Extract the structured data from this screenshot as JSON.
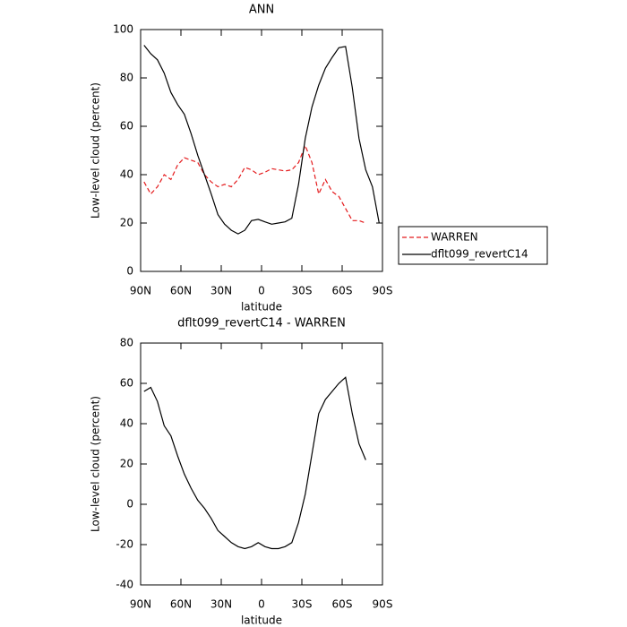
{
  "chart_data": [
    {
      "type": "line",
      "title": "ANN",
      "xlabel": "latitude",
      "ylabel": "Low-level cloud (percent)",
      "x": [
        87.5,
        82.5,
        77.5,
        72.5,
        67.5,
        62.5,
        57.5,
        52.5,
        47.5,
        42.5,
        37.5,
        32.5,
        27.5,
        22.5,
        17.5,
        12.5,
        7.5,
        2.5,
        -2.5,
        -7.5,
        -12.5,
        -17.5,
        -22.5,
        -27.5,
        -32.5,
        -37.5,
        -42.5,
        -47.5,
        -52.5,
        -57.5,
        -62.5,
        -67.5,
        -72.5,
        -77.5,
        -82.5,
        -87.5
      ],
      "series": [
        {
          "name": "WARREN",
          "color": "#e41a1c",
          "linestyle": "dashed",
          "values": [
            37,
            32,
            35,
            40,
            38,
            44,
            47,
            46,
            45,
            40,
            37,
            35,
            36,
            35,
            38,
            43,
            42,
            40,
            41,
            42.5,
            42,
            41.5,
            42,
            45,
            52,
            45,
            32,
            38,
            33,
            31,
            26,
            21,
            21,
            20,
            null,
            null
          ]
        },
        {
          "name": "dflt099_revertC14",
          "color": "#000000",
          "linestyle": "solid",
          "values": [
            93.5,
            90,
            87.5,
            82,
            74,
            69,
            65,
            57,
            48,
            40,
            32,
            23.5,
            19.5,
            17,
            15.5,
            17,
            21,
            21.5,
            20.5,
            19.5,
            20,
            20.5,
            22,
            36,
            55,
            68,
            77,
            84,
            88.5,
            92.5,
            93,
            76,
            55,
            42,
            35,
            20
          ]
        }
      ],
      "xlim": [
        90,
        -90
      ],
      "xticks": [
        {
          "value": 90,
          "label": "90N"
        },
        {
          "value": 60,
          "label": "60N"
        },
        {
          "value": 30,
          "label": "30N"
        },
        0,
        {
          "value": -30,
          "label": "30S"
        },
        {
          "value": -60,
          "label": "60S"
        },
        {
          "value": -90,
          "label": "90S"
        }
      ],
      "ylim": [
        0,
        100
      ],
      "yticks": [
        0,
        20,
        40,
        60,
        80,
        100
      ],
      "legend": "right"
    },
    {
      "type": "line",
      "title": "dflt099_revertC14 - WARREN",
      "xlabel": "latitude",
      "ylabel": "Low-level cloud (percent)",
      "x": [
        87.5,
        82.5,
        77.5,
        72.5,
        67.5,
        62.5,
        57.5,
        52.5,
        47.5,
        42.5,
        37.5,
        32.5,
        27.5,
        22.5,
        17.5,
        12.5,
        7.5,
        2.5,
        -2.5,
        -7.5,
        -12.5,
        -17.5,
        -22.5,
        -27.5,
        -32.5,
        -37.5,
        -42.5,
        -47.5,
        -52.5,
        -57.5,
        -62.5,
        -67.5,
        -72.5,
        -77.5,
        -82.5,
        -87.5
      ],
      "series": [
        {
          "color": "#000000",
          "linestyle": "solid",
          "values": [
            56,
            58,
            51,
            39,
            34,
            24,
            15,
            8,
            2,
            -2,
            -7,
            -13,
            -16,
            -19,
            -21,
            -22,
            -21,
            -19,
            -21,
            -22,
            -22,
            -21,
            -19,
            -9,
            5,
            25,
            45,
            52,
            56,
            60,
            63,
            45,
            30,
            22,
            null,
            null
          ]
        }
      ],
      "xlim": [
        90,
        -90
      ],
      "xticks": [
        {
          "value": 90,
          "label": "90N"
        },
        {
          "value": 60,
          "label": "60N"
        },
        {
          "value": 30,
          "label": "30N"
        },
        0,
        {
          "value": -30,
          "label": "30S"
        },
        {
          "value": -60,
          "label": "60S"
        },
        {
          "value": -90,
          "label": "90S"
        }
      ],
      "ylim": [
        -40,
        80
      ],
      "yticks": [
        -40,
        -20,
        0,
        20,
        40,
        60,
        80
      ]
    }
  ]
}
